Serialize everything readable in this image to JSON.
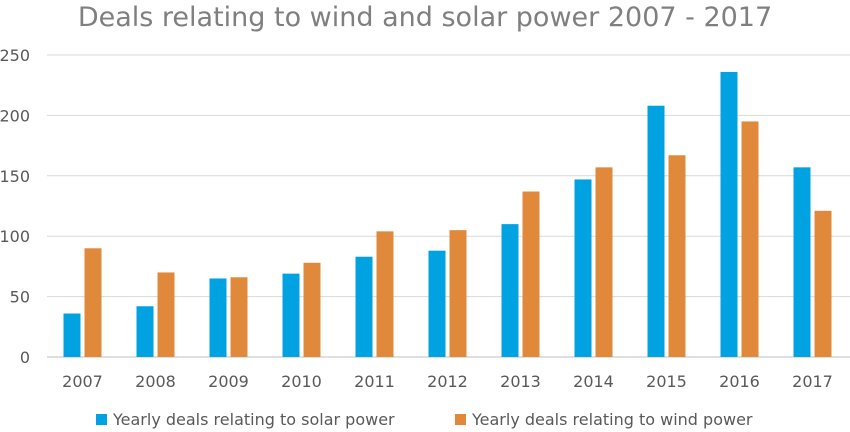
{
  "chart_data": {
    "type": "bar",
    "title": "Deals relating to wind and solar power 2007 - 2017",
    "xlabel": "",
    "ylabel": "",
    "ylim": [
      0,
      250
    ],
    "yticks": [
      0,
      50,
      100,
      150,
      200,
      250
    ],
    "grid": true,
    "legend_position": "bottom",
    "categories": [
      "2007",
      "2008",
      "2009",
      "2010",
      "2011",
      "2012",
      "2013",
      "2014",
      "2015",
      "2016",
      "2017"
    ],
    "series": [
      {
        "name": "Yearly deals relating to solar power",
        "color": "#00a2e1",
        "values": [
          36,
          42,
          65,
          69,
          83,
          88,
          110,
          147,
          208,
          236,
          157
        ]
      },
      {
        "name": "Yearly deals relating to wind power",
        "color": "#e0893a",
        "values": [
          90,
          70,
          66,
          78,
          104,
          105,
          137,
          157,
          167,
          195,
          121
        ]
      }
    ]
  }
}
